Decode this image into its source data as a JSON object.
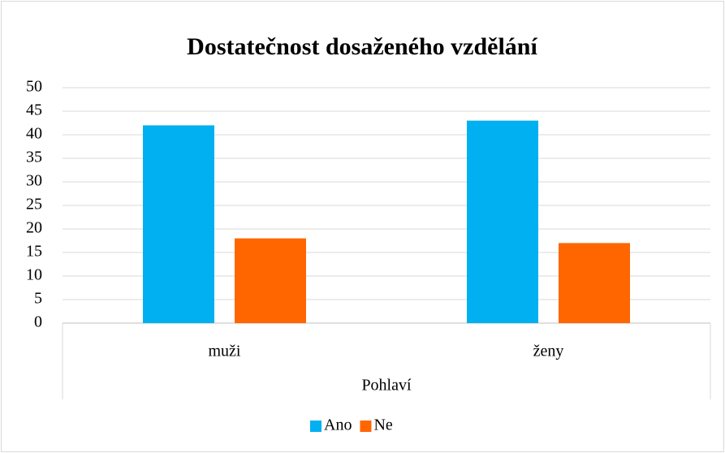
{
  "chart_data": {
    "type": "bar",
    "title": "Dostatečnost dosaženého vzdělání",
    "categories": [
      "muži",
      "ženy"
    ],
    "x_label": "Pohlaví",
    "series": [
      {
        "name": "Ano",
        "color": "#00b0f0",
        "values": [
          42,
          43
        ]
      },
      {
        "name": "Ne",
        "color": "#ff6600",
        "values": [
          18,
          17
        ]
      }
    ],
    "ylim": [
      0,
      50
    ],
    "yticks": [
      0,
      5,
      10,
      15,
      20,
      25,
      30,
      35,
      40,
      45,
      50
    ],
    "grid": true,
    "legend": "bottom"
  }
}
